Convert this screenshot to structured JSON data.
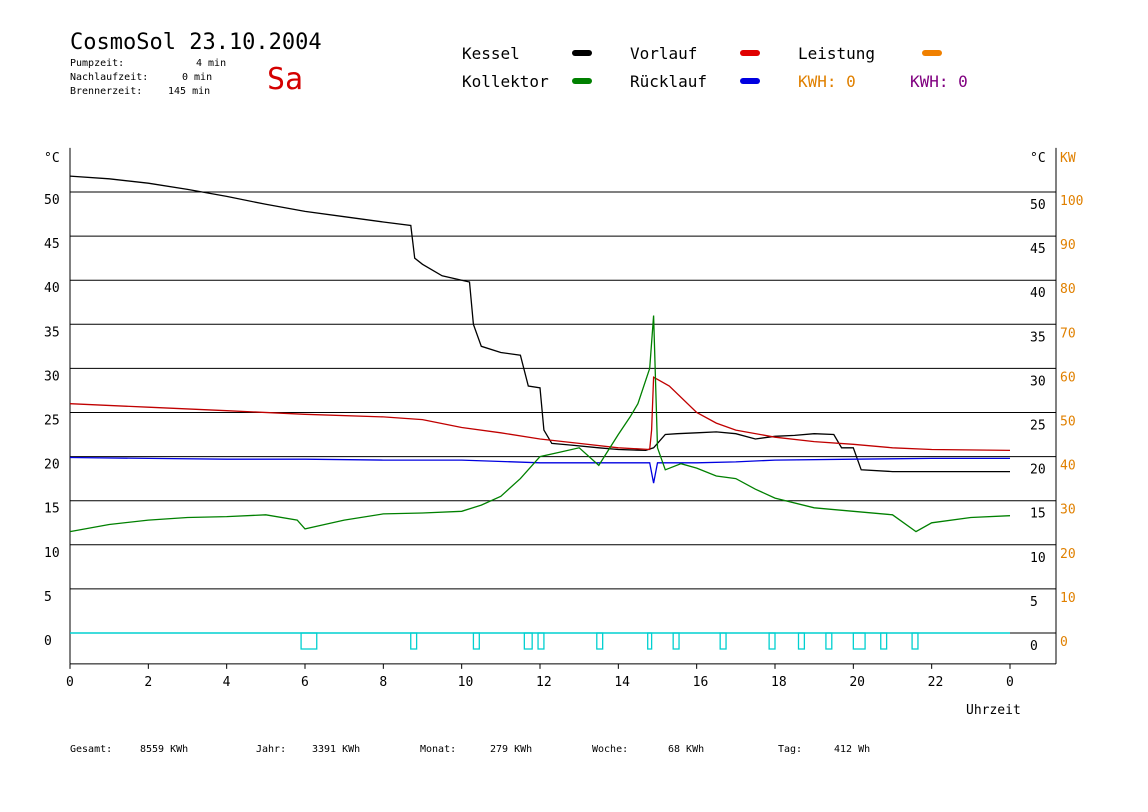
{
  "header": {
    "title": "CosmoSol 23.10.2004",
    "day": "Sa",
    "stats": [
      {
        "label": "Pumpzeit:",
        "value": "4 min"
      },
      {
        "label": "Nachlaufzeit:",
        "value": "0 min"
      },
      {
        "label": "Brennerzeit:",
        "value": "145 min"
      }
    ]
  },
  "legend": {
    "items": [
      {
        "label": "Kessel",
        "color": "#000000"
      },
      {
        "label": "Vorlauf",
        "color": "#e00000"
      },
      {
        "label": "Leistung",
        "color": "#f08000"
      },
      {
        "label": "Kollektor",
        "color": "#008000"
      },
      {
        "label": "Rücklauf",
        "color": "#0000e0"
      }
    ],
    "kwh": [
      {
        "label": "KWH: 0",
        "color": "#e08000"
      },
      {
        "label": "KWH: 0",
        "color": "#800080"
      }
    ]
  },
  "footer": [
    {
      "label": "Gesamt:",
      "value": "8559 KWh"
    },
    {
      "label": "Jahr:",
      "value": "3391 KWh"
    },
    {
      "label": "Monat:",
      "value": "279 KWh"
    },
    {
      "label": "Woche:",
      "value": "68 KWh"
    },
    {
      "label": "Tag:",
      "value": "412 Wh"
    }
  ],
  "chart_data": {
    "type": "line",
    "xlabel": "Uhrzeit",
    "ylabel_left": "°C",
    "ylabel_right": "°C",
    "ylabel_right2": "KW",
    "xlim": [
      0,
      24
    ],
    "ylim": [
      -3.5,
      55
    ],
    "x_ticks": [
      "0",
      "2",
      "4",
      "6",
      "8",
      "10",
      "12",
      "14",
      "16",
      "18",
      "20",
      "22",
      "0"
    ],
    "y_ticks": [
      0,
      5,
      10,
      15,
      20,
      25,
      30,
      35,
      40,
      45,
      50
    ],
    "kw_ticks": [
      0,
      10,
      20,
      30,
      40,
      50,
      60,
      70,
      80,
      90,
      100
    ],
    "grid": true,
    "series": [
      {
        "name": "Kessel",
        "color": "#000000",
        "points": [
          [
            0,
            51.8
          ],
          [
            1,
            51.5
          ],
          [
            2,
            51
          ],
          [
            3,
            50.3
          ],
          [
            4,
            49.5
          ],
          [
            5,
            48.6
          ],
          [
            6,
            47.8
          ],
          [
            7,
            47.2
          ],
          [
            8,
            46.6
          ],
          [
            8.7,
            46.2
          ],
          [
            8.8,
            42.5
          ],
          [
            9,
            41.8
          ],
          [
            9.5,
            40.5
          ],
          [
            10,
            40
          ],
          [
            10.2,
            39.8
          ],
          [
            10.3,
            35
          ],
          [
            10.5,
            32.5
          ],
          [
            11,
            31.8
          ],
          [
            11.5,
            31.5
          ],
          [
            11.7,
            28
          ],
          [
            12,
            27.8
          ],
          [
            12.1,
            23
          ],
          [
            12.3,
            21.5
          ],
          [
            12.8,
            21.3
          ],
          [
            13.5,
            21
          ],
          [
            14,
            20.8
          ],
          [
            14.7,
            20.7
          ],
          [
            14.9,
            21
          ],
          [
            15.2,
            22.5
          ],
          [
            15.5,
            22.6
          ],
          [
            16,
            22.7
          ],
          [
            16.5,
            22.8
          ],
          [
            17,
            22.6
          ],
          [
            17.5,
            22
          ],
          [
            18,
            22.3
          ],
          [
            18.5,
            22.4
          ],
          [
            19,
            22.6
          ],
          [
            19.5,
            22.5
          ],
          [
            19.7,
            21
          ],
          [
            20,
            21
          ],
          [
            20.2,
            18.5
          ],
          [
            21,
            18.3
          ],
          [
            24,
            18.3
          ]
        ]
      },
      {
        "name": "Vorlauf",
        "color": "#c00000",
        "points": [
          [
            0,
            26
          ],
          [
            2,
            25.6
          ],
          [
            4,
            25.2
          ],
          [
            6,
            24.8
          ],
          [
            8,
            24.5
          ],
          [
            9,
            24.2
          ],
          [
            10,
            23.3
          ],
          [
            11,
            22.7
          ],
          [
            12,
            22
          ],
          [
            13,
            21.5
          ],
          [
            14,
            21
          ],
          [
            14.8,
            20.8
          ],
          [
            14.85,
            23
          ],
          [
            14.9,
            29
          ],
          [
            15.3,
            28
          ],
          [
            16,
            25
          ],
          [
            16.5,
            23.8
          ],
          [
            17,
            23
          ],
          [
            18,
            22.2
          ],
          [
            19,
            21.7
          ],
          [
            20,
            21.4
          ],
          [
            21,
            21
          ],
          [
            22,
            20.8
          ],
          [
            24,
            20.7
          ]
        ]
      },
      {
        "name": "Rücklauf",
        "color": "#0000e0",
        "points": [
          [
            0,
            19.9
          ],
          [
            2,
            19.8
          ],
          [
            4,
            19.7
          ],
          [
            6,
            19.7
          ],
          [
            8,
            19.6
          ],
          [
            10,
            19.6
          ],
          [
            12,
            19.3
          ],
          [
            14,
            19.3
          ],
          [
            14.8,
            19.3
          ],
          [
            14.9,
            17
          ],
          [
            15,
            19.3
          ],
          [
            16,
            19.3
          ],
          [
            17,
            19.4
          ],
          [
            18,
            19.6
          ],
          [
            20,
            19.7
          ],
          [
            22,
            19.8
          ],
          [
            24,
            19.8
          ]
        ]
      },
      {
        "name": "Kollektor",
        "color": "#008000",
        "points": [
          [
            0,
            11.5
          ],
          [
            1,
            12.3
          ],
          [
            2,
            12.8
          ],
          [
            3,
            13.1
          ],
          [
            4,
            13.2
          ],
          [
            5,
            13.4
          ],
          [
            5.8,
            12.8
          ],
          [
            6,
            11.8
          ],
          [
            6.5,
            12.3
          ],
          [
            7,
            12.8
          ],
          [
            8,
            13.5
          ],
          [
            9,
            13.6
          ],
          [
            10,
            13.8
          ],
          [
            10.5,
            14.5
          ],
          [
            11,
            15.5
          ],
          [
            11.5,
            17.5
          ],
          [
            12,
            20
          ],
          [
            12.5,
            20.5
          ],
          [
            13,
            21
          ],
          [
            13.5,
            19
          ],
          [
            14,
            22.5
          ],
          [
            14.3,
            24.5
          ],
          [
            14.5,
            26
          ],
          [
            14.8,
            30
          ],
          [
            14.9,
            36
          ],
          [
            15,
            21
          ],
          [
            15.2,
            18.5
          ],
          [
            15.6,
            19.2
          ],
          [
            16,
            18.7
          ],
          [
            16.5,
            17.8
          ],
          [
            17,
            17.5
          ],
          [
            17.5,
            16.3
          ],
          [
            18,
            15.3
          ],
          [
            19,
            14.2
          ],
          [
            20,
            13.8
          ],
          [
            21,
            13.4
          ],
          [
            21.6,
            11.5
          ],
          [
            22,
            12.5
          ],
          [
            23,
            13.1
          ],
          [
            24,
            13.3
          ]
        ]
      }
    ],
    "pump_segments": [
      [
        5.9,
        6.3
      ],
      [
        8.7,
        8.85
      ],
      [
        10.3,
        10.45
      ],
      [
        11.6,
        11.8
      ],
      [
        11.95,
        12.1
      ],
      [
        13.45,
        13.6
      ],
      [
        14.75,
        14.85
      ],
      [
        15.4,
        15.55
      ],
      [
        16.6,
        16.75
      ],
      [
        17.85,
        18
      ],
      [
        18.6,
        18.75
      ],
      [
        19.3,
        19.45
      ],
      [
        20,
        20.3
      ],
      [
        20.7,
        20.85
      ],
      [
        21.5,
        21.65
      ]
    ]
  }
}
